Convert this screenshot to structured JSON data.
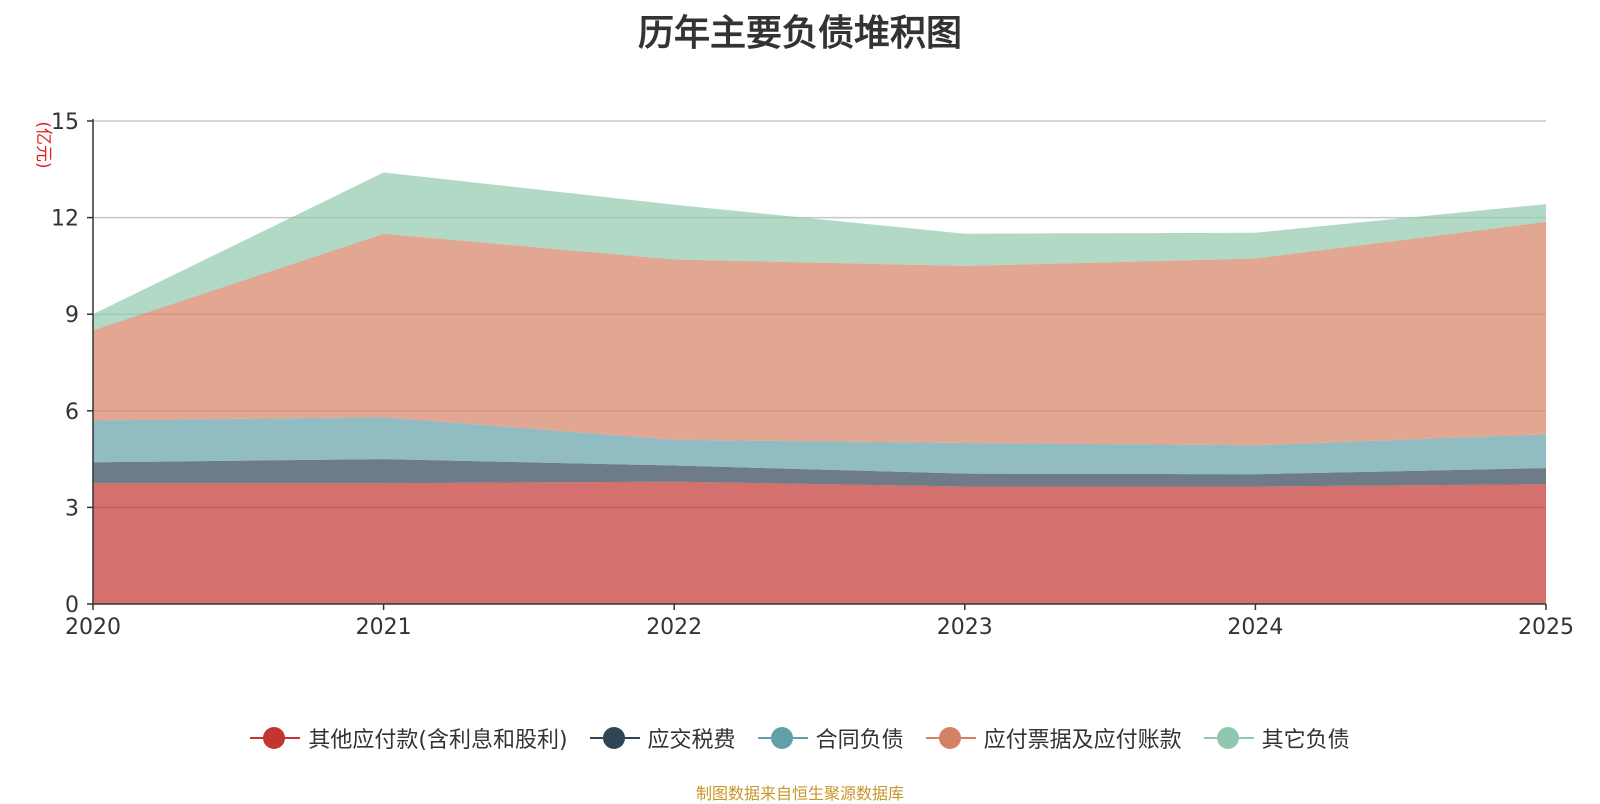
{
  "title": "历年主要负债堆积图",
  "source_note": "制图数据来自恒生聚源数据库",
  "chart_data": {
    "type": "area",
    "stacked": true,
    "title": "历年主要负债堆积图",
    "y_unit_label": "(亿元)",
    "x": [
      "2020",
      "2021",
      "2022",
      "2023",
      "2024",
      "2025"
    ],
    "ylim": [
      0,
      15
    ],
    "yticks": [
      0,
      3,
      6,
      9,
      12,
      15
    ],
    "grid": true,
    "legend_position": "bottom",
    "series": [
      {
        "name": "其他应付款(含利息和股利)",
        "color": "#c23531",
        "values": [
          3.75,
          3.75,
          3.8,
          3.65,
          3.65,
          3.72
        ]
      },
      {
        "name": "应交税费",
        "color": "#2f4554",
        "values": [
          0.65,
          0.75,
          0.5,
          0.4,
          0.38,
          0.5
        ]
      },
      {
        "name": "合同负债",
        "color": "#61a0a8",
        "values": [
          1.3,
          1.3,
          0.8,
          0.95,
          0.9,
          1.05
        ]
      },
      {
        "name": "应付票据及应付账款",
        "color": "#d48265",
        "values": [
          2.8,
          5.7,
          5.6,
          5.5,
          5.8,
          6.6
        ]
      },
      {
        "name": "其它负债",
        "color": "#91c7ae",
        "values": [
          0.5,
          1.9,
          1.7,
          1.0,
          0.8,
          0.55
        ]
      }
    ]
  }
}
